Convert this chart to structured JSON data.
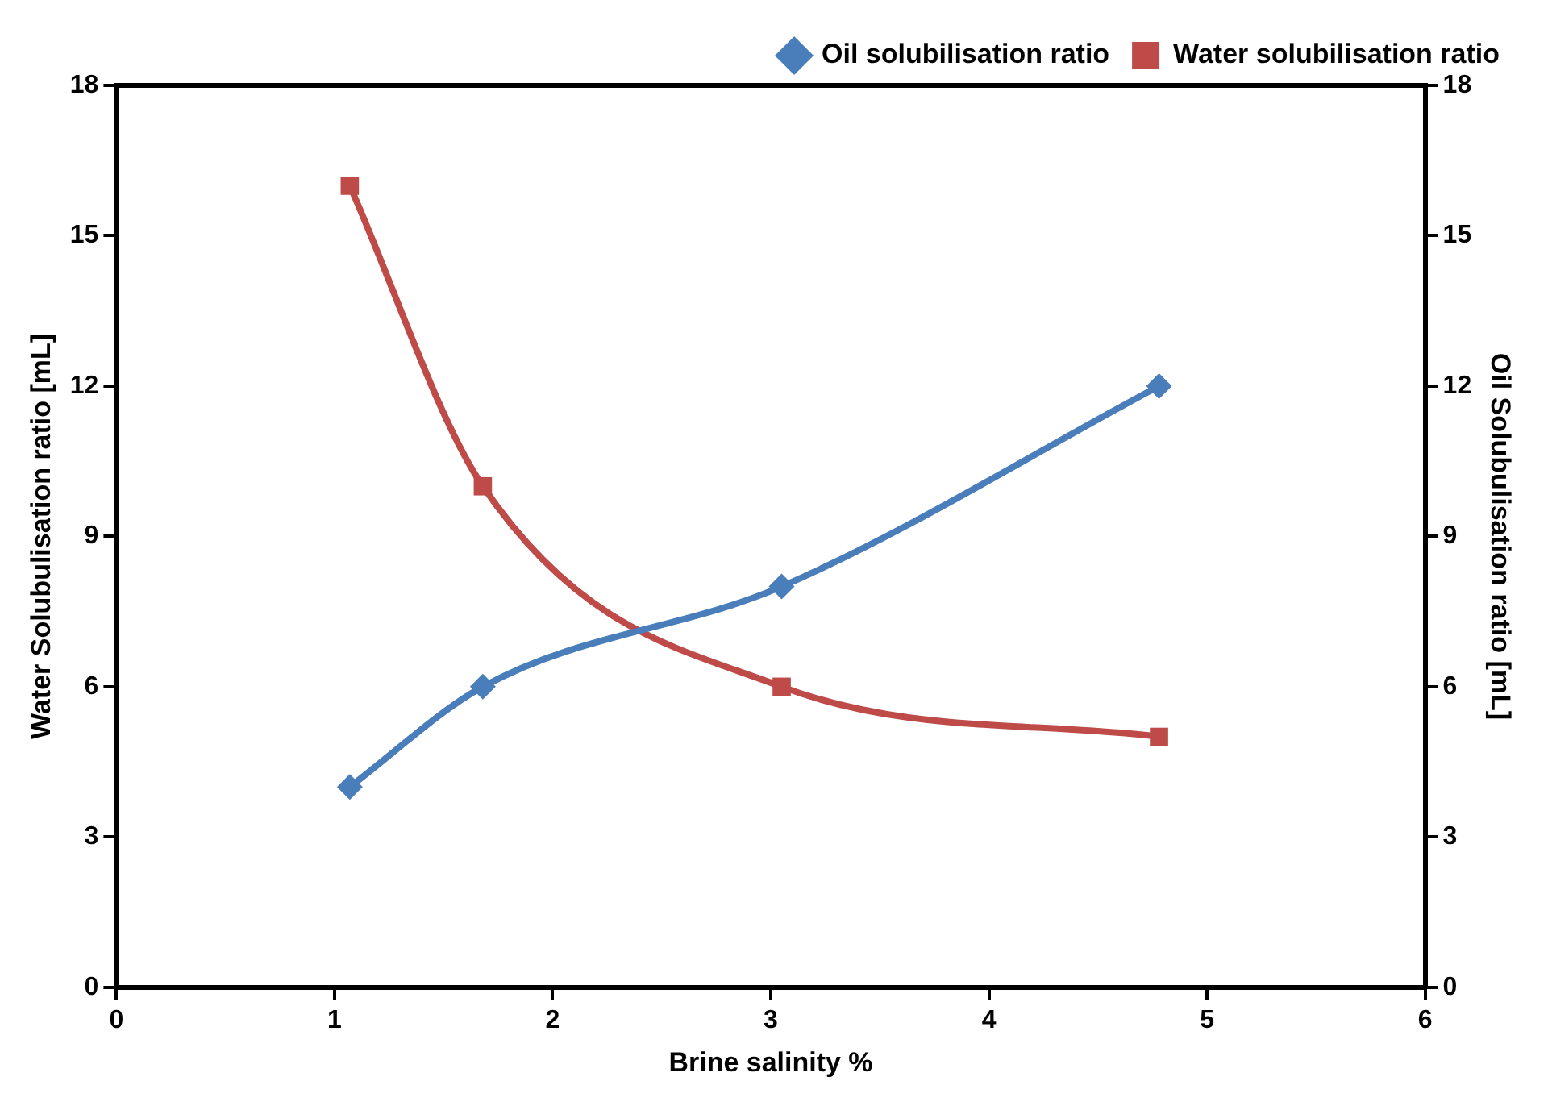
{
  "chart_data": {
    "type": "line",
    "xlabel": "Brine salinity %",
    "ylabel": "Water Solubulisation ratio [mL]",
    "y2label": "Oil Solubulisation ratio [mL]",
    "xlim": [
      0,
      6
    ],
    "xticks": [
      0,
      1,
      2,
      3,
      4,
      5,
      6
    ],
    "ylim": [
      0,
      18
    ],
    "yticks": [
      0,
      3,
      6,
      9,
      12,
      15,
      18
    ],
    "y2lim": [
      0,
      18
    ],
    "y2ticks": [
      0,
      3,
      6,
      9,
      12,
      15,
      18
    ],
    "series": [
      {
        "name": "Oil solubilisation ratio",
        "color": "#4a7ebb",
        "axis": "y2",
        "marker": "diamond",
        "x": [
          1.07,
          1.68,
          3.05,
          4.78
        ],
        "values": [
          4,
          6,
          8,
          12
        ]
      },
      {
        "name": "Water solubilisation ratio",
        "color": "#be4b48",
        "marker": "square",
        "x": [
          1.07,
          1.68,
          3.05,
          4.78
        ],
        "values": [
          16,
          10,
          6,
          5
        ]
      }
    ],
    "legend": "top right",
    "grid": false,
    "line_style": "solid"
  }
}
